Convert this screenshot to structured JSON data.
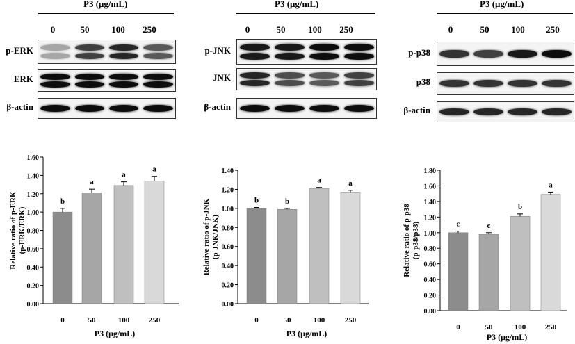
{
  "figure": {
    "panels": [
      {
        "id": "erk",
        "blot": {
          "title": "P3 (μg/mL)",
          "lanes": [
            "0",
            "50",
            "100",
            "250"
          ],
          "rows": [
            {
              "label": "p-ERK",
              "band_intensity": [
                0.35,
                0.75,
                0.85,
                0.65
              ],
              "double": true
            },
            {
              "label": "ERK",
              "band_intensity": [
                0.95,
                0.95,
                0.95,
                0.95
              ],
              "double": true
            },
            {
              "label": "β-actin",
              "band_intensity": [
                0.95,
                0.95,
                0.95,
                0.95
              ],
              "double": false
            }
          ]
        }
      },
      {
        "id": "jnk",
        "blot": {
          "title": "P3 (μg/mL)",
          "lanes": [
            "0",
            "50",
            "100",
            "250"
          ],
          "rows": [
            {
              "label": "p-JNK",
              "band_intensity": [
                0.9,
                0.9,
                0.95,
                0.95
              ],
              "double": true
            },
            {
              "label": "JNK",
              "band_intensity": [
                0.85,
                0.7,
                0.65,
                0.75
              ],
              "double": true
            },
            {
              "label": "β-actin",
              "band_intensity": [
                0.95,
                0.95,
                0.95,
                0.95
              ],
              "double": false
            }
          ]
        }
      },
      {
        "id": "p38",
        "blot": {
          "title": "P3 (μg/mL)",
          "lanes": [
            "0",
            "50",
            "100",
            "250"
          ],
          "rows": [
            {
              "label": "p-p38",
              "band_intensity": [
                0.8,
                0.75,
                0.9,
                0.95
              ],
              "double": false
            },
            {
              "label": "p38",
              "band_intensity": [
                0.8,
                0.8,
                0.8,
                0.8
              ],
              "double": false
            },
            {
              "label": "β-actin",
              "band_intensity": [
                0.85,
                0.85,
                0.85,
                0.85
              ],
              "double": false
            }
          ]
        }
      }
    ]
  },
  "chart_data": [
    {
      "type": "bar",
      "categories": [
        "0",
        "50",
        "100",
        "250"
      ],
      "values": [
        1.0,
        1.21,
        1.29,
        1.34
      ],
      "errors": [
        0.04,
        0.04,
        0.04,
        0.05
      ],
      "significance": [
        "b",
        "a",
        "a",
        "a"
      ],
      "ylabel": "Relative ratio of p-ERK (p-ERK/ERK)",
      "ylabel_lines": [
        "Relative ratio of p-ERK",
        "(p-ERK/ERK)"
      ],
      "xlabel": "P3 (μg/mL)",
      "ylim": [
        0,
        1.6
      ],
      "yticks": [
        "0.00",
        "0.20",
        "0.40",
        "0.60",
        "0.80",
        "1.00",
        "1.20",
        "1.40",
        "1.60"
      ],
      "grid": false,
      "colors": [
        "#8c8c8c",
        "#a6a6a6",
        "#bfbfbf",
        "#d9d9d9"
      ]
    },
    {
      "type": "bar",
      "categories": [
        "0",
        "50",
        "100",
        "250"
      ],
      "values": [
        1.0,
        0.99,
        1.21,
        1.17
      ],
      "errors": [
        0.01,
        0.01,
        0.01,
        0.02
      ],
      "significance": [
        "b",
        "b",
        "a",
        "a"
      ],
      "ylabel": "Relative ratio of p-JNK (p-JNK/JNK)",
      "ylabel_lines": [
        "Relative ratio of p-JNK",
        "(p-JNK/JNK)"
      ],
      "xlabel": "P3 (μg/mL)",
      "ylim": [
        0,
        1.4
      ],
      "yticks": [
        "0.00",
        "0.20",
        "0.40",
        "0.60",
        "0.80",
        "1.00",
        "1.20",
        "1.40"
      ],
      "grid": false,
      "colors": [
        "#8c8c8c",
        "#a6a6a6",
        "#bfbfbf",
        "#d9d9d9"
      ]
    },
    {
      "type": "bar",
      "categories": [
        "0",
        "50",
        "100",
        "250"
      ],
      "values": [
        1.0,
        0.98,
        1.21,
        1.49
      ],
      "errors": [
        0.02,
        0.02,
        0.03,
        0.03
      ],
      "significance": [
        "c",
        "c",
        "b",
        "a"
      ],
      "ylabel": "Relative ratio of p-p38 (p-p38/p38)",
      "ylabel_lines": [
        "Relative ratio of p-p38",
        "(p-p38/p38)"
      ],
      "xlabel": "P3 (μg/mL)",
      "ylim": [
        0,
        1.8
      ],
      "yticks": [
        "0.00",
        "0.20",
        "0.40",
        "0.60",
        "0.80",
        "1.00",
        "1.20",
        "1.40",
        "1.60",
        "1.80"
      ],
      "grid": false,
      "colors": [
        "#8c8c8c",
        "#a6a6a6",
        "#bfbfbf",
        "#d9d9d9"
      ]
    }
  ]
}
